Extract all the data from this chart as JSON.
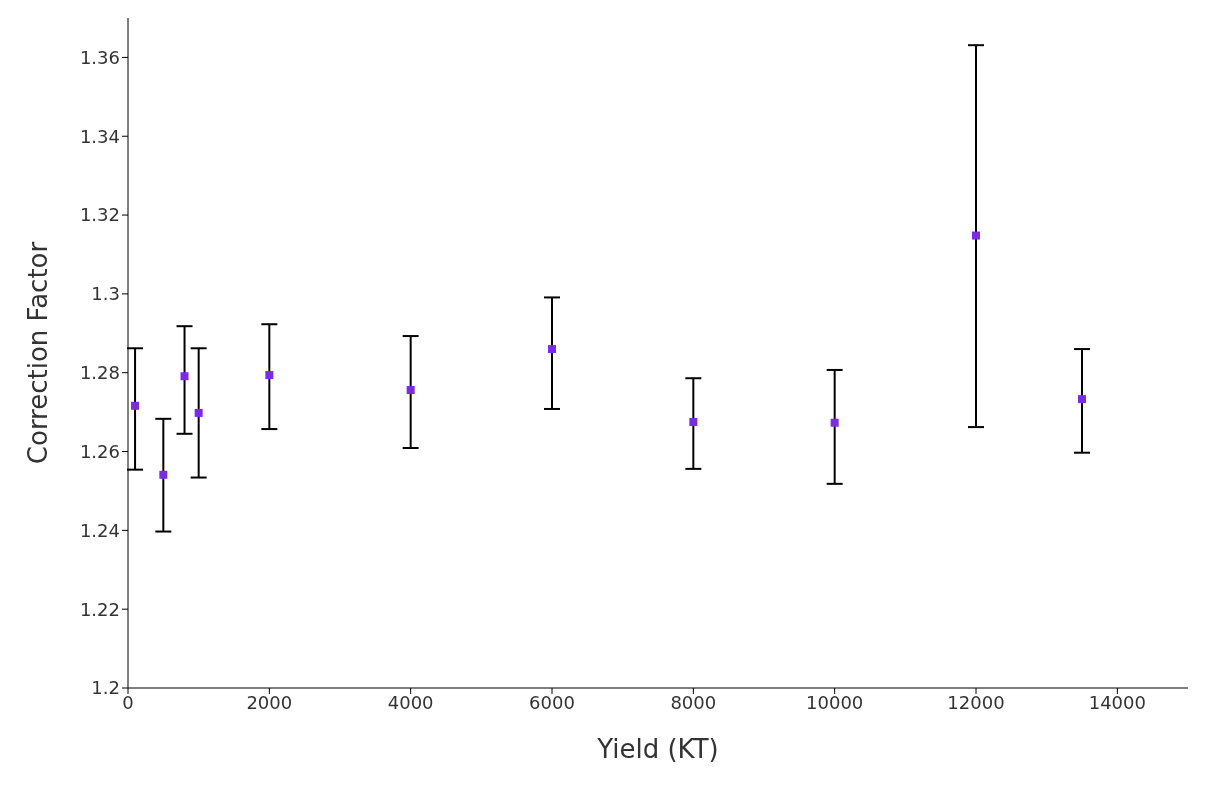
{
  "chart_data": {
    "type": "scatter",
    "xlabel": "Yield (KT)",
    "ylabel": "Correction Factor",
    "x": [
      100,
      500,
      800,
      1000,
      2000,
      4000,
      6000,
      8000,
      10000,
      12000,
      13500
    ],
    "values": [
      1.2716,
      1.2541,
      1.2791,
      1.2698,
      1.2794,
      1.2756,
      1.286,
      1.2675,
      1.2673,
      1.3148,
      1.2733
    ],
    "errors": [
      [
        1.2554,
        1.2862
      ],
      [
        1.2397,
        1.2683
      ],
      [
        1.2645,
        1.2918
      ],
      [
        1.2534,
        1.2862
      ],
      [
        1.2657,
        1.2923
      ],
      [
        1.2609,
        1.2893
      ],
      [
        1.2708,
        1.2991
      ],
      [
        1.2556,
        1.2786
      ],
      [
        1.2518,
        1.2807
      ],
      [
        1.2662,
        1.3631
      ],
      [
        1.2597,
        1.286
      ]
    ],
    "color": "#7b2be2",
    "marker": "square",
    "xlim": [
      0,
      15000
    ],
    "xticks": [
      0,
      2000,
      4000,
      6000,
      8000,
      10000,
      12000,
      14000
    ],
    "ylim": [
      1.2,
      1.37
    ],
    "yticks": [
      1.2,
      1.22,
      1.24,
      1.26,
      1.28,
      1.3,
      1.32,
      1.34,
      1.36
    ],
    "grid": false,
    "legend": false
  }
}
